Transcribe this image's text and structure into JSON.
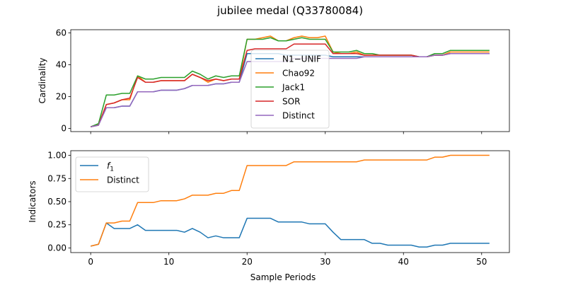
{
  "title": "jubilee medal (Q33780084)",
  "chart_data": [
    {
      "type": "line",
      "ylabel": "Cardinality",
      "xlabel": "",
      "xlim": [
        -2.55,
        53.55
      ],
      "ylim": [
        -2,
        62
      ],
      "xticks": [
        0,
        10,
        20,
        30,
        40,
        50
      ],
      "yticks": [
        0,
        20,
        40,
        60
      ],
      "ytick_labels": [
        "0",
        "20",
        "40",
        "60"
      ],
      "legend_position": "center",
      "series": [
        {
          "name": "N1−UNIF",
          "color": "#1f77b4",
          "values": [
            1,
            2.5,
            13,
            13,
            14,
            14,
            23,
            23,
            23,
            24,
            24,
            24,
            25,
            27,
            27,
            27,
            28,
            28,
            29,
            29,
            47,
            47,
            47,
            47,
            47,
            46,
            46,
            46,
            46,
            46,
            46,
            45,
            45,
            45,
            45,
            45,
            45,
            45,
            45,
            45,
            45,
            45,
            45,
            45,
            46,
            46,
            47,
            47,
            47,
            47,
            47,
            47
          ]
        },
        {
          "name": "Chao92",
          "color": "#ff7f0e",
          "values": [
            1,
            2.5,
            15,
            16,
            18,
            18,
            33,
            29,
            29,
            30,
            30,
            30,
            30,
            34,
            32,
            29,
            31,
            30,
            31,
            31,
            56,
            56,
            57,
            58,
            55,
            55,
            57,
            58,
            57,
            57,
            58,
            48,
            47,
            47,
            48,
            46,
            46,
            46,
            46,
            46,
            46,
            46,
            45,
            45,
            46,
            46,
            48,
            48,
            48,
            48,
            48,
            48
          ]
        },
        {
          "name": "Jack1",
          "color": "#2ca02c",
          "values": [
            1,
            3,
            21,
            21,
            22,
            22,
            33,
            31,
            31,
            32,
            32,
            32,
            32,
            36,
            34,
            31,
            33,
            32,
            33,
            33,
            56,
            56,
            56,
            57,
            55,
            55,
            56,
            57,
            56,
            56,
            56,
            48,
            48,
            48,
            49,
            47,
            47,
            46,
            46,
            46,
            46,
            46,
            45,
            45,
            47,
            47,
            49,
            49,
            49,
            49,
            49,
            49
          ]
        },
        {
          "name": "SOR",
          "color": "#d62728",
          "values": [
            1,
            2,
            15,
            16,
            18,
            19,
            32,
            29,
            29,
            30,
            30,
            30,
            30,
            34,
            32,
            30,
            31,
            30,
            31,
            31,
            49,
            50,
            50,
            50,
            50,
            50,
            53,
            53,
            53,
            53,
            53,
            47,
            47,
            47,
            47,
            46,
            46,
            46,
            46,
            46,
            46,
            46,
            45,
            45,
            46,
            46,
            47,
            47,
            47,
            47,
            47,
            47
          ]
        },
        {
          "name": "Distinct",
          "color": "#9467bd",
          "values": [
            1,
            2,
            13,
            13,
            14,
            14,
            23,
            23,
            23,
            24,
            24,
            24,
            25,
            27,
            27,
            27,
            28,
            28,
            29,
            29,
            42,
            42,
            42,
            42,
            42,
            42,
            44,
            44,
            44,
            44,
            44,
            44,
            44,
            44,
            44,
            45,
            45,
            45,
            45,
            45,
            45,
            45,
            45,
            45,
            46,
            46,
            47,
            47,
            47,
            47,
            47,
            47
          ]
        }
      ]
    },
    {
      "type": "line",
      "ylabel": "Indicators",
      "xlabel": "Sample Periods",
      "xlim": [
        -2.55,
        53.55
      ],
      "ylim": [
        -0.05,
        1.05
      ],
      "xticks": [
        0,
        10,
        20,
        30,
        40,
        50
      ],
      "xtick_labels": [
        "0",
        "10",
        "20",
        "30",
        "40",
        "50"
      ],
      "yticks": [
        0,
        0.25,
        0.5,
        0.75,
        1.0
      ],
      "ytick_labels": [
        "0.00",
        "0.25",
        "0.50",
        "0.75",
        "1.00"
      ],
      "legend_position": "upper left",
      "series": [
        {
          "name": "f",
          "subscript": "1",
          "color": "#1f77b4",
          "values": [
            0.02,
            0.04,
            0.27,
            0.21,
            0.21,
            0.21,
            0.25,
            0.19,
            0.19,
            0.19,
            0.19,
            0.19,
            0.17,
            0.21,
            0.17,
            0.11,
            0.13,
            0.11,
            0.11,
            0.11,
            0.32,
            0.32,
            0.32,
            0.32,
            0.28,
            0.28,
            0.28,
            0.28,
            0.26,
            0.26,
            0.26,
            0.17,
            0.09,
            0.09,
            0.09,
            0.09,
            0.05,
            0.05,
            0.03,
            0.03,
            0.03,
            0.03,
            0.01,
            0.01,
            0.03,
            0.03,
            0.05,
            0.05,
            0.05,
            0.05,
            0.05,
            0.05
          ]
        },
        {
          "name": "Distinct",
          "color": "#ff7f0e",
          "values": [
            0.02,
            0.04,
            0.27,
            0.27,
            0.29,
            0.29,
            0.49,
            0.49,
            0.49,
            0.51,
            0.51,
            0.51,
            0.53,
            0.57,
            0.57,
            0.57,
            0.59,
            0.59,
            0.62,
            0.62,
            0.89,
            0.89,
            0.89,
            0.89,
            0.89,
            0.89,
            0.93,
            0.93,
            0.93,
            0.93,
            0.93,
            0.93,
            0.93,
            0.93,
            0.93,
            0.95,
            0.95,
            0.95,
            0.95,
            0.95,
            0.95,
            0.95,
            0.95,
            0.95,
            0.98,
            0.98,
            1.0,
            1.0,
            1.0,
            1.0,
            1.0,
            1.0
          ]
        }
      ]
    }
  ]
}
